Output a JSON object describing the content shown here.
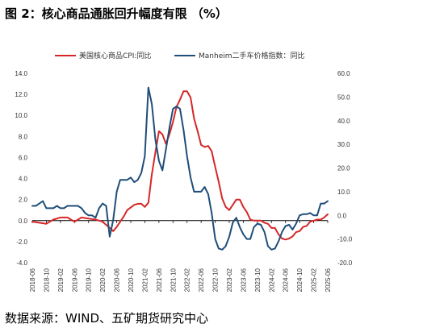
{
  "title": "图 2：核心商品通胀回升幅度有限 （%）",
  "source": "数据来源：WIND、五矿期货研究中心",
  "colors": {
    "red": "#d62728",
    "blue": "#1f4e79",
    "axis": "#000000"
  },
  "chart_data": {
    "type": "line",
    "title": "图 2：核心商品通胀回升幅度有限 （%）",
    "legend_position": "top",
    "grid": false,
    "x_ticks": [
      "2018-06",
      "2018-10",
      "2019-02",
      "2019-06",
      "2019-10",
      "2020-02",
      "2020-06",
      "2020-10",
      "2021-02",
      "2021-06",
      "2021-10",
      "2022-02",
      "2022-06",
      "2022-10",
      "2023-02",
      "2023-06",
      "2023-10",
      "2024-02",
      "2024-06",
      "2024-10",
      "2025-02",
      "2025-06"
    ],
    "y_left": {
      "min": -4,
      "max": 14,
      "ticks": [
        "-4.0",
        "-2.0",
        "0.0",
        "2.0",
        "4.0",
        "6.0",
        "8.0",
        "10.0",
        "12.0",
        "14.0"
      ]
    },
    "y_right": {
      "min": -20,
      "max": 60,
      "ticks": [
        "-20.0",
        "-10.0",
        "0.0",
        "10.0",
        "20.0",
        "30.0",
        "40.0",
        "50.0",
        "60.0"
      ]
    },
    "series": [
      {
        "name": "美国核心商品CPI:同比",
        "axis": "left",
        "color": "#d62728",
        "points": [
          [
            "2018-06",
            -0.1
          ],
          [
            "2018-08",
            -0.2
          ],
          [
            "2018-10",
            -0.3
          ],
          [
            "2018-12",
            0.1
          ],
          [
            "2019-02",
            0.3
          ],
          [
            "2019-04",
            0.3
          ],
          [
            "2019-06",
            -0.1
          ],
          [
            "2019-08",
            0.3
          ],
          [
            "2019-10",
            0.2
          ],
          [
            "2019-12",
            0.1
          ],
          [
            "2020-02",
            -0.1
          ],
          [
            "2020-04",
            -0.7
          ],
          [
            "2020-05",
            -1.0
          ],
          [
            "2020-06",
            -0.6
          ],
          [
            "2020-08",
            0.4
          ],
          [
            "2020-09",
            1.0
          ],
          [
            "2020-11",
            1.5
          ],
          [
            "2020-12",
            1.6
          ],
          [
            "2021-01",
            1.6
          ],
          [
            "2021-02",
            1.3
          ],
          [
            "2021-03",
            1.7
          ],
          [
            "2021-04",
            4.4
          ],
          [
            "2021-05",
            6.5
          ],
          [
            "2021-06",
            8.5
          ],
          [
            "2021-07",
            8.2
          ],
          [
            "2021-08",
            7.3
          ],
          [
            "2021-09",
            8.2
          ],
          [
            "2021-10",
            9.4
          ],
          [
            "2021-11",
            10.8
          ],
          [
            "2021-12",
            11.5
          ],
          [
            "2022-01",
            12.3
          ],
          [
            "2022-02",
            12.3
          ],
          [
            "2022-03",
            11.7
          ],
          [
            "2022-04",
            9.7
          ],
          [
            "2022-05",
            8.5
          ],
          [
            "2022-06",
            7.2
          ],
          [
            "2022-07",
            7.0
          ],
          [
            "2022-08",
            7.1
          ],
          [
            "2022-09",
            6.6
          ],
          [
            "2022-10",
            5.1
          ],
          [
            "2022-11",
            3.7
          ],
          [
            "2022-12",
            2.1
          ],
          [
            "2023-01",
            1.3
          ],
          [
            "2023-02",
            1.0
          ],
          [
            "2023-03",
            1.5
          ],
          [
            "2023-04",
            2.0
          ],
          [
            "2023-05",
            2.0
          ],
          [
            "2023-06",
            1.3
          ],
          [
            "2023-07",
            0.8
          ],
          [
            "2023-08",
            0.1
          ],
          [
            "2023-09",
            0.0
          ],
          [
            "2023-10",
            0.0
          ],
          [
            "2023-11",
            0.0
          ],
          [
            "2023-12",
            -0.2
          ],
          [
            "2024-01",
            -0.3
          ],
          [
            "2024-02",
            -0.7
          ],
          [
            "2024-03",
            -0.7
          ],
          [
            "2024-04",
            -1.3
          ],
          [
            "2024-05",
            -1.7
          ],
          [
            "2024-06",
            -1.8
          ],
          [
            "2024-07",
            -1.7
          ],
          [
            "2024-08",
            -1.5
          ],
          [
            "2024-09",
            -1.1
          ],
          [
            "2024-10",
            -1.0
          ],
          [
            "2024-11",
            -0.6
          ],
          [
            "2024-12",
            -0.5
          ],
          [
            "2025-01",
            -0.1
          ],
          [
            "2025-02",
            0.0
          ],
          [
            "2025-03",
            0.1
          ],
          [
            "2025-04",
            0.1
          ],
          [
            "2025-05",
            0.3
          ],
          [
            "2025-06",
            0.6
          ]
        ]
      },
      {
        "name": "Manheim二手车价格指数：同比",
        "axis": "right",
        "color": "#1f4e79",
        "points": [
          [
            "2018-06",
            4
          ],
          [
            "2018-07",
            4
          ],
          [
            "2018-08",
            5
          ],
          [
            "2018-09",
            6
          ],
          [
            "2018-10",
            3
          ],
          [
            "2018-11",
            3
          ],
          [
            "2018-12",
            3
          ],
          [
            "2019-01",
            4
          ],
          [
            "2019-02",
            3
          ],
          [
            "2019-03",
            3
          ],
          [
            "2019-04",
            4
          ],
          [
            "2019-05",
            4
          ],
          [
            "2019-06",
            4
          ],
          [
            "2019-07",
            4
          ],
          [
            "2019-08",
            3
          ],
          [
            "2019-09",
            1
          ],
          [
            "2019-10",
            0
          ],
          [
            "2019-11",
            0
          ],
          [
            "2019-12",
            -1
          ],
          [
            "2020-01",
            3
          ],
          [
            "2020-02",
            5
          ],
          [
            "2020-03",
            4
          ],
          [
            "2020-04",
            -9
          ],
          [
            "2020-05",
            -2
          ],
          [
            "2020-06",
            10
          ],
          [
            "2020-07",
            15
          ],
          [
            "2020-08",
            15
          ],
          [
            "2020-09",
            15
          ],
          [
            "2020-10",
            16
          ],
          [
            "2020-11",
            14
          ],
          [
            "2020-12",
            15
          ],
          [
            "2021-01",
            18
          ],
          [
            "2021-02",
            25
          ],
          [
            "2021-03",
            54
          ],
          [
            "2021-04",
            47
          ],
          [
            "2021-05",
            32
          ],
          [
            "2021-06",
            23
          ],
          [
            "2021-07",
            19
          ],
          [
            "2021-08",
            28
          ],
          [
            "2021-09",
            37
          ],
          [
            "2021-10",
            45
          ],
          [
            "2021-11",
            46
          ],
          [
            "2021-12",
            45
          ],
          [
            "2022-01",
            36
          ],
          [
            "2022-02",
            25
          ],
          [
            "2022-03",
            16
          ],
          [
            "2022-04",
            10
          ],
          [
            "2022-05",
            10
          ],
          [
            "2022-06",
            10
          ],
          [
            "2022-07",
            12
          ],
          [
            "2022-08",
            9
          ],
          [
            "2022-09",
            1
          ],
          [
            "2022-10",
            -10
          ],
          [
            "2022-11",
            -14
          ],
          [
            "2022-12",
            -14.5
          ],
          [
            "2023-01",
            -13
          ],
          [
            "2023-02",
            -9
          ],
          [
            "2023-03",
            -3
          ],
          [
            "2023-04",
            -1
          ],
          [
            "2023-05",
            -5
          ],
          [
            "2023-06",
            -8
          ],
          [
            "2023-07",
            -10
          ],
          [
            "2023-08",
            -10
          ],
          [
            "2023-09",
            -5
          ],
          [
            "2023-10",
            -3.5
          ],
          [
            "2023-11",
            -4
          ],
          [
            "2023-12",
            -7
          ],
          [
            "2024-01",
            -13
          ],
          [
            "2024-02",
            -14.5
          ],
          [
            "2024-03",
            -14
          ],
          [
            "2024-04",
            -11
          ],
          [
            "2024-05",
            -7
          ],
          [
            "2024-06",
            -4.5
          ],
          [
            "2024-07",
            -4
          ],
          [
            "2024-08",
            -6
          ],
          [
            "2024-09",
            -3.5
          ],
          [
            "2024-10",
            0
          ],
          [
            "2024-11",
            0.5
          ],
          [
            "2024-12",
            0.5
          ],
          [
            "2025-01",
            1
          ],
          [
            "2025-02",
            0
          ],
          [
            "2025-03",
            0
          ],
          [
            "2025-04",
            5
          ],
          [
            "2025-05",
            5
          ],
          [
            "2025-06",
            6
          ]
        ]
      }
    ]
  }
}
